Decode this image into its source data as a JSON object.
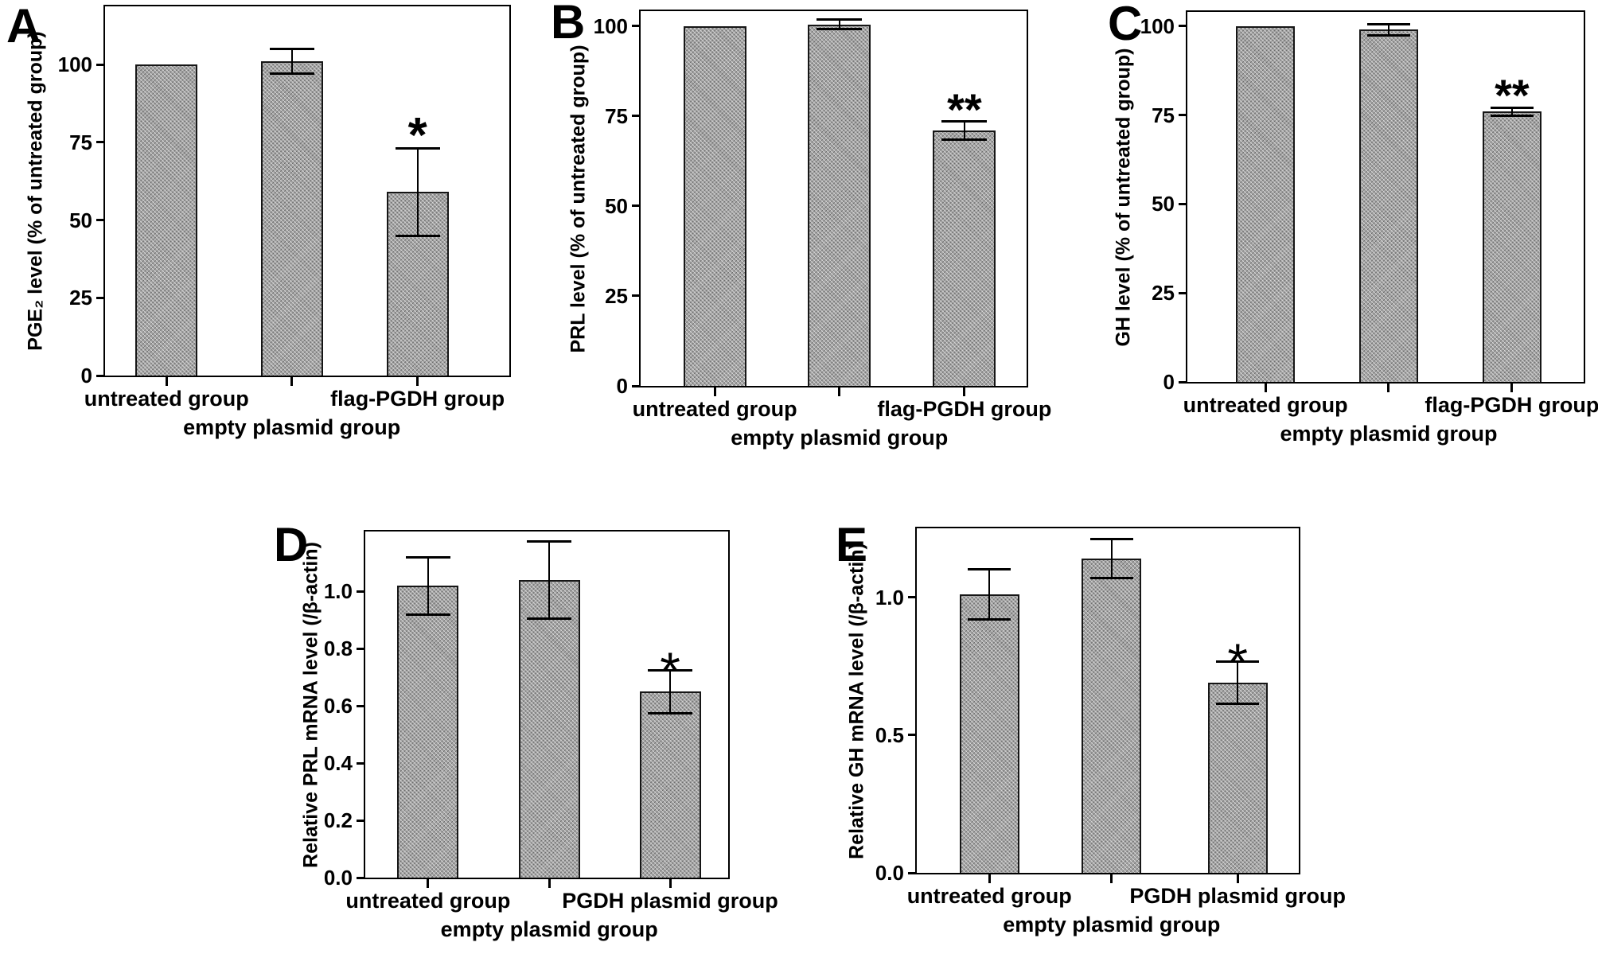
{
  "figure": {
    "colors": {
      "background": "#ffffff",
      "bar_fill": "#a3a3a3",
      "bar_border": "#161616",
      "axis": "#000000",
      "error_bar": "#000000",
      "text": "#000000"
    }
  },
  "chart_data": [
    {
      "type": "bar",
      "panel_label": "A",
      "title": "",
      "xlabel": "",
      "ylabel": "PGE₂ level (% of untreated group)",
      "categories": [
        "untreated group",
        "empty plasmid group",
        "flag-PGDH group"
      ],
      "values": [
        100,
        101,
        59
      ],
      "errors": [
        0,
        4,
        14
      ],
      "significance": [
        "",
        "",
        "*"
      ],
      "yticks": [
        0,
        25,
        50,
        75,
        100
      ],
      "ytick_labels": [
        "0",
        "25",
        "50",
        "75",
        "100"
      ],
      "ylim": [
        0,
        118.7
      ],
      "grid": false,
      "legend": null
    },
    {
      "type": "bar",
      "panel_label": "B",
      "title": "",
      "xlabel": "",
      "ylabel": "PRL level (% of untreated group)",
      "categories": [
        "untreated group",
        "empty plasmid group",
        "flag-PGDH group"
      ],
      "values": [
        100,
        100.5,
        71
      ],
      "errors": [
        0,
        1.3,
        2.6
      ],
      "significance": [
        "",
        "",
        "**"
      ],
      "yticks": [
        0,
        25,
        50,
        75,
        100
      ],
      "ytick_labels": [
        "0",
        "25",
        "50",
        "75",
        "100"
      ],
      "ylim": [
        0,
        104.2
      ],
      "grid": false,
      "legend": null
    },
    {
      "type": "bar",
      "panel_label": "C",
      "title": "",
      "xlabel": "",
      "ylabel": "GH level (% of untreated group)",
      "categories": [
        "untreated group",
        "empty plasmid group",
        "flag-PGDH group"
      ],
      "values": [
        100,
        99,
        76
      ],
      "errors": [
        0,
        1.5,
        1.1
      ],
      "significance": [
        "",
        "",
        "**"
      ],
      "yticks": [
        0,
        25,
        50,
        75,
        100
      ],
      "ytick_labels": [
        "0",
        "25",
        "50",
        "75",
        "100"
      ],
      "ylim": [
        0,
        104
      ],
      "grid": false,
      "legend": null
    },
    {
      "type": "bar",
      "panel_label": "D",
      "title": "",
      "xlabel": "",
      "ylabel": "Relative PRL mRNA level (/β-actin)",
      "categories": [
        "untreated group",
        "empty plasmid group",
        "PGDH plasmid group"
      ],
      "values": [
        1.02,
        1.04,
        0.65
      ],
      "errors": [
        0.1,
        0.135,
        0.075
      ],
      "significance": [
        "",
        "",
        "*"
      ],
      "yticks": [
        0,
        0.2,
        0.4,
        0.6,
        0.8,
        1.0
      ],
      "ytick_labels": [
        "0.0",
        "0.2",
        "0.4",
        "0.6",
        "0.8",
        "1.0"
      ],
      "ylim": [
        0,
        1.21
      ],
      "grid": false,
      "legend": null
    },
    {
      "type": "bar",
      "panel_label": "E",
      "title": "",
      "xlabel": "",
      "ylabel": "Relative GH mRNA level (/β-actin)",
      "categories": [
        "untreated group",
        "empty plasmid group",
        "PGDH plasmid group"
      ],
      "values": [
        1.01,
        1.14,
        0.69
      ],
      "errors": [
        0.09,
        0.07,
        0.076
      ],
      "significance": [
        "",
        "",
        "*"
      ],
      "yticks": [
        0,
        0.5,
        1.0
      ],
      "ytick_labels": [
        "0.0",
        "0.5",
        "1.0"
      ],
      "ylim": [
        0,
        1.25
      ],
      "grid": false,
      "legend": null
    }
  ]
}
